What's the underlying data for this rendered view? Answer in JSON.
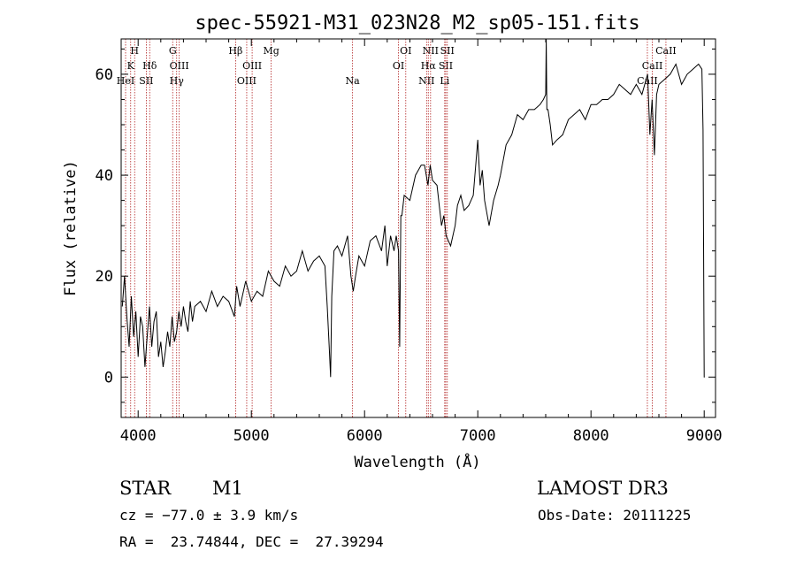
{
  "chart_data": {
    "type": "line",
    "title": "spec-55921-M31_023N28_M2_sp05-151.fits",
    "xlabel": "Wavelength (Å)",
    "ylabel": "Flux (relative)",
    "xlim": [
      3850,
      9100
    ],
    "ylim": [
      -8,
      67
    ],
    "xticks": [
      4000,
      5000,
      6000,
      7000,
      8000,
      9000
    ],
    "xtick_labels": [
      "4000",
      "5000",
      "6000",
      "7000",
      "8000",
      "9000"
    ],
    "yticks": [
      0,
      20,
      40,
      60
    ],
    "ytick_labels": [
      "0",
      "20",
      "40",
      "60"
    ],
    "grid": false,
    "series": [
      {
        "name": "flux",
        "x": [
          3860,
          3880,
          3900,
          3920,
          3940,
          3960,
          3980,
          4000,
          4020,
          4040,
          4060,
          4080,
          4100,
          4120,
          4140,
          4160,
          4180,
          4200,
          4220,
          4240,
          4260,
          4280,
          4300,
          4320,
          4340,
          4360,
          4380,
          4400,
          4420,
          4440,
          4460,
          4480,
          4500,
          4550,
          4600,
          4650,
          4700,
          4750,
          4800,
          4850,
          4870,
          4900,
          4950,
          5000,
          5050,
          5100,
          5150,
          5200,
          5250,
          5300,
          5350,
          5400,
          5450,
          5500,
          5550,
          5600,
          5650,
          5670,
          5690,
          5700,
          5710,
          5730,
          5760,
          5800,
          5850,
          5880,
          5900,
          5920,
          5950,
          6000,
          6050,
          6100,
          6150,
          6180,
          6200,
          6230,
          6260,
          6280,
          6300,
          6310,
          6320,
          6330,
          6350,
          6400,
          6450,
          6500,
          6530,
          6560,
          6580,
          6600,
          6640,
          6680,
          6700,
          6720,
          6760,
          6800,
          6820,
          6850,
          6880,
          6920,
          6960,
          7000,
          7020,
          7040,
          7060,
          7100,
          7140,
          7180,
          7200,
          7250,
          7300,
          7350,
          7400,
          7450,
          7500,
          7550,
          7580,
          7600,
          7605,
          7610,
          7620,
          7640,
          7660,
          7700,
          7750,
          7800,
          7850,
          7900,
          7950,
          8000,
          8050,
          8100,
          8150,
          8200,
          8250,
          8300,
          8350,
          8400,
          8450,
          8500,
          8520,
          8540,
          8560,
          8580,
          8600,
          8650,
          8700,
          8750,
          8800,
          8850,
          8900,
          8950,
          8980,
          8990,
          9000,
          9005
        ],
        "values": [
          14,
          20,
          12,
          6,
          16,
          8,
          13,
          4,
          12,
          10,
          2,
          8,
          14,
          6,
          11,
          13,
          4,
          7,
          2,
          5,
          9,
          6,
          12,
          7,
          9,
          13,
          10,
          14,
          11,
          9,
          15,
          11,
          14,
          15,
          13,
          17,
          14,
          16,
          15,
          12,
          18,
          14,
          19,
          15,
          17,
          16,
          21,
          19,
          18,
          22,
          20,
          21,
          25,
          21,
          23,
          24,
          22,
          14,
          5,
          0,
          16,
          25,
          26,
          24,
          28,
          20,
          17,
          20,
          24,
          22,
          27,
          28,
          25,
          30,
          22,
          28,
          25,
          28,
          25,
          6,
          32,
          32,
          36,
          35,
          40,
          42,
          42,
          38,
          42,
          39,
          38,
          30,
          32,
          28,
          26,
          30,
          34,
          36,
          33,
          34,
          36,
          47,
          38,
          41,
          35,
          30,
          35,
          38,
          40,
          46,
          48,
          52,
          51,
          53,
          53,
          54,
          55,
          56,
          67,
          53,
          53,
          50,
          46,
          47,
          48,
          51,
          52,
          53,
          51,
          54,
          54,
          55,
          55,
          56,
          58,
          57,
          56,
          58,
          56,
          60,
          48,
          55,
          44,
          56,
          58,
          59,
          60,
          62,
          58,
          60,
          61,
          62,
          61,
          49,
          0,
          0
        ]
      }
    ],
    "line_markers": [
      {
        "name": "H",
        "wavelength": 3969,
        "row": 1
      },
      {
        "name": "K",
        "wavelength": 3934,
        "row": 2
      },
      {
        "name": "HeI",
        "wavelength": 3889,
        "row": 3
      },
      {
        "name": "SII",
        "wavelength": 4072,
        "row": 3
      },
      {
        "name": "Hδ",
        "wavelength": 4102,
        "row": 2
      },
      {
        "name": "G",
        "wavelength": 4305,
        "row": 1
      },
      {
        "name": "OIII",
        "wavelength": 4363,
        "row": 2
      },
      {
        "name": "Hγ",
        "wavelength": 4340,
        "row": 3
      },
      {
        "name": "Hβ",
        "wavelength": 4861,
        "row": 1
      },
      {
        "name": "OIII",
        "wavelength": 4959,
        "row": 3
      },
      {
        "name": "OIII",
        "wavelength": 5007,
        "row": 2
      },
      {
        "name": "Mg",
        "wavelength": 5175,
        "row": 1
      },
      {
        "name": "Na",
        "wavelength": 5894,
        "row": 3
      },
      {
        "name": "OI",
        "wavelength": 6364,
        "row": 1
      },
      {
        "name": "OI",
        "wavelength": 6300,
        "row": 2
      },
      {
        "name": "NII",
        "wavelength": 6548,
        "row": 3
      },
      {
        "name": "NII",
        "wavelength": 6583,
        "row": 1
      },
      {
        "name": "Hα",
        "wavelength": 6563,
        "row": 2
      },
      {
        "name": "SII",
        "wavelength": 6717,
        "row": 2
      },
      {
        "name": "SII",
        "wavelength": 6731,
        "row": 1
      },
      {
        "name": "Li",
        "wavelength": 6708,
        "row": 3
      },
      {
        "name": "CaII",
        "wavelength": 8498,
        "row": 3
      },
      {
        "name": "CaII",
        "wavelength": 8542,
        "row": 2
      },
      {
        "name": "CaII",
        "wavelength": 8662,
        "row": 1
      }
    ]
  },
  "info": {
    "object_class": "STAR",
    "subclass": "M1",
    "survey": "LAMOST DR3",
    "cz": "cz = −77.0 ± 3.9 km/s",
    "obs_date": "Obs-Date: 20111225",
    "radec": "RA =  23.74844, DEC =  27.39294"
  },
  "colors": {
    "line_marker": "#b22222",
    "axis": "#000000",
    "spectrum": "#000000"
  }
}
